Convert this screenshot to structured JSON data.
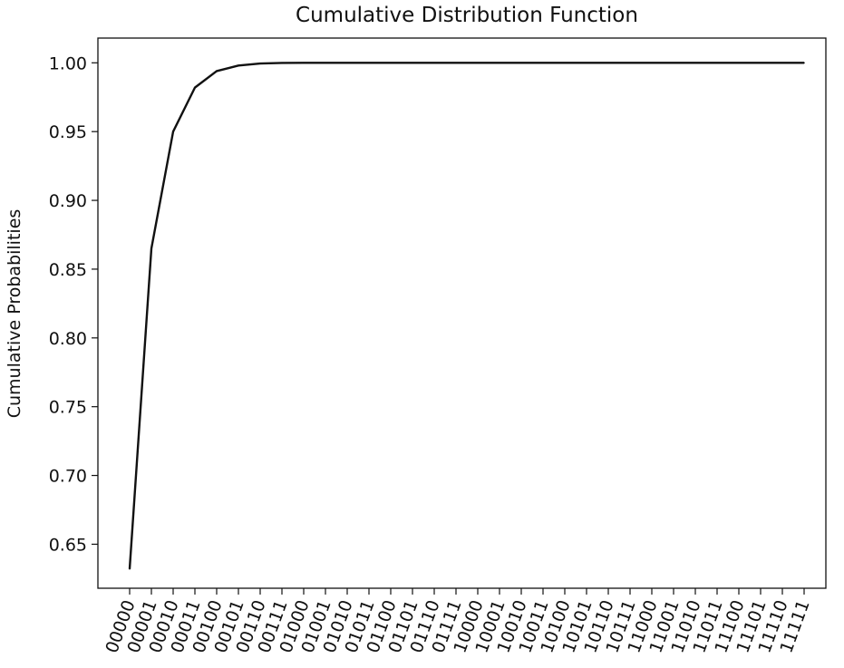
{
  "chart_data": {
    "type": "line",
    "title": "Cumulative Distribution Function",
    "xlabel": "",
    "ylabel": "Cumulative Probabilities",
    "ylim": [
      0.618,
      1.018
    ],
    "yticks": [
      "0.65",
      "0.70",
      "0.75",
      "0.80",
      "0.85",
      "0.90",
      "0.95",
      "1.00"
    ],
    "ytick_values": [
      0.65,
      0.7,
      0.75,
      0.8,
      0.85,
      0.9,
      0.95,
      1.0
    ],
    "grid": false,
    "categories": [
      "00000",
      "00001",
      "00010",
      "00011",
      "00100",
      "00101",
      "00110",
      "00111",
      "01000",
      "01001",
      "01010",
      "01011",
      "01100",
      "01101",
      "01110",
      "01111",
      "10000",
      "10001",
      "10010",
      "10011",
      "10100",
      "10101",
      "10110",
      "10111",
      "11000",
      "11001",
      "11010",
      "11011",
      "11100",
      "11101",
      "11110",
      "11111"
    ],
    "series": [
      {
        "values": [
          0.632,
          0.865,
          0.95,
          0.982,
          0.994,
          0.998,
          0.9995,
          0.9999,
          1.0,
          1.0,
          1.0,
          1.0,
          1.0,
          1.0,
          1.0,
          1.0,
          1.0,
          1.0,
          1.0,
          1.0,
          1.0,
          1.0,
          1.0,
          1.0,
          1.0,
          1.0,
          1.0,
          1.0,
          1.0,
          1.0,
          1.0,
          1.0
        ],
        "color": "#111111"
      }
    ]
  }
}
